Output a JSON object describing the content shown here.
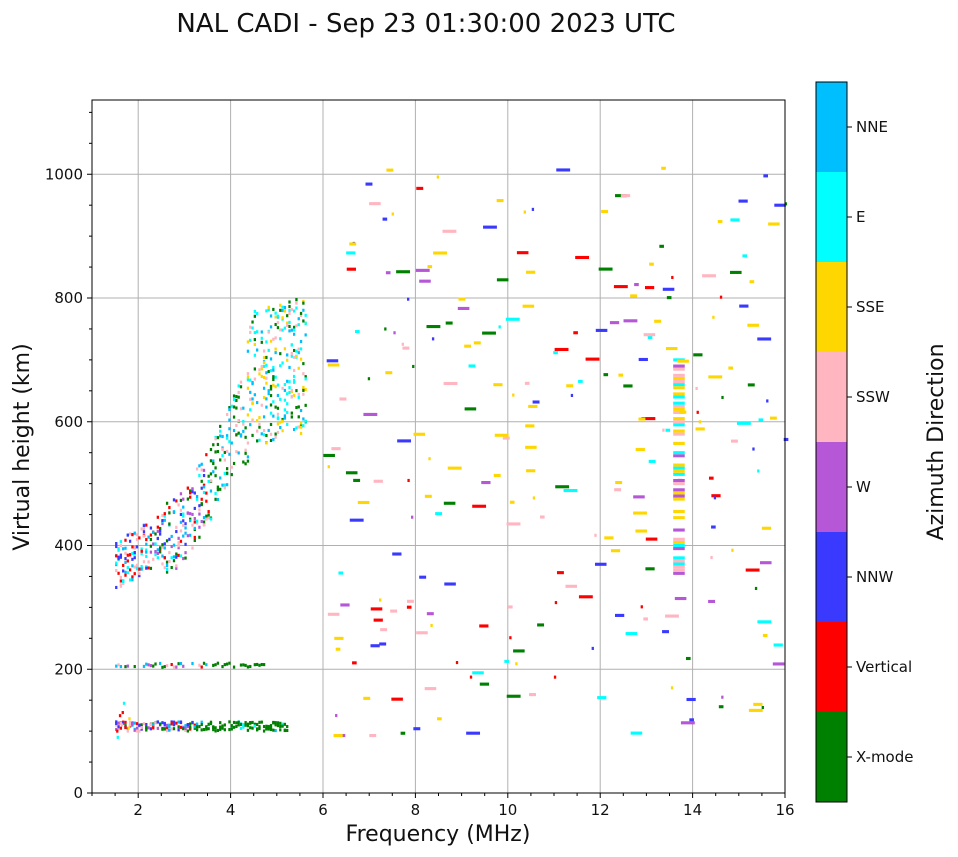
{
  "chart_data": {
    "type": "heatmap",
    "title": "NAL CADI - Sep 23 01:30:00 2023 UTC",
    "xlabel": "Frequency (MHz)",
    "ylabel": "Virtual height (km)",
    "xlim": [
      1,
      16
    ],
    "ylim": [
      0,
      1120
    ],
    "xticks": [
      2,
      4,
      6,
      8,
      10,
      12,
      14,
      16
    ],
    "yticks": [
      0,
      200,
      400,
      600,
      800,
      1000
    ],
    "grid": true,
    "colorbar": {
      "label": "Azimuth Direction",
      "categories": [
        "X-mode",
        "Vertical",
        "NNW",
        "W",
        "SSW",
        "SSE",
        "E",
        "NNE"
      ],
      "colors": [
        "#008000",
        "#ff0000",
        "#3a3aff",
        "#b557d6",
        "#ffb6c1",
        "#ffd700",
        "#00ffff",
        "#00bfff"
      ]
    },
    "traces": [
      {
        "name": "E-layer echoes",
        "freq_range": [
          1.5,
          5.2
        ],
        "height_range": [
          100,
          115
        ],
        "dominant": [
          "X-mode",
          "SSW",
          "Vertical",
          "NNE"
        ]
      },
      {
        "name": "E-layer second hop",
        "freq_range": [
          1.5,
          4.7
        ],
        "height_range": [
          203,
          210
        ],
        "dominant": [
          "X-mode",
          "SSW",
          "Vertical",
          "NNE"
        ]
      },
      {
        "name": "F-layer trace",
        "freq_range": [
          1.5,
          5.6
        ],
        "height_range": [
          330,
          830
        ],
        "dominant": [
          "E",
          "NNE",
          "Vertical",
          "NNW",
          "X-mode",
          "SSE"
        ]
      },
      {
        "name": "Column at 13.7 MHz",
        "freq": 13.7,
        "height_range": [
          355,
          700
        ],
        "dominant": [
          "SSE",
          "W",
          "SSW"
        ]
      },
      {
        "name": "Scattered echoes",
        "freq_range": [
          6,
          16
        ],
        "height_range": [
          90,
          1010
        ],
        "dominant": [
          "SSE",
          "SSW",
          "NNW",
          "W",
          "Vertical"
        ]
      }
    ]
  }
}
